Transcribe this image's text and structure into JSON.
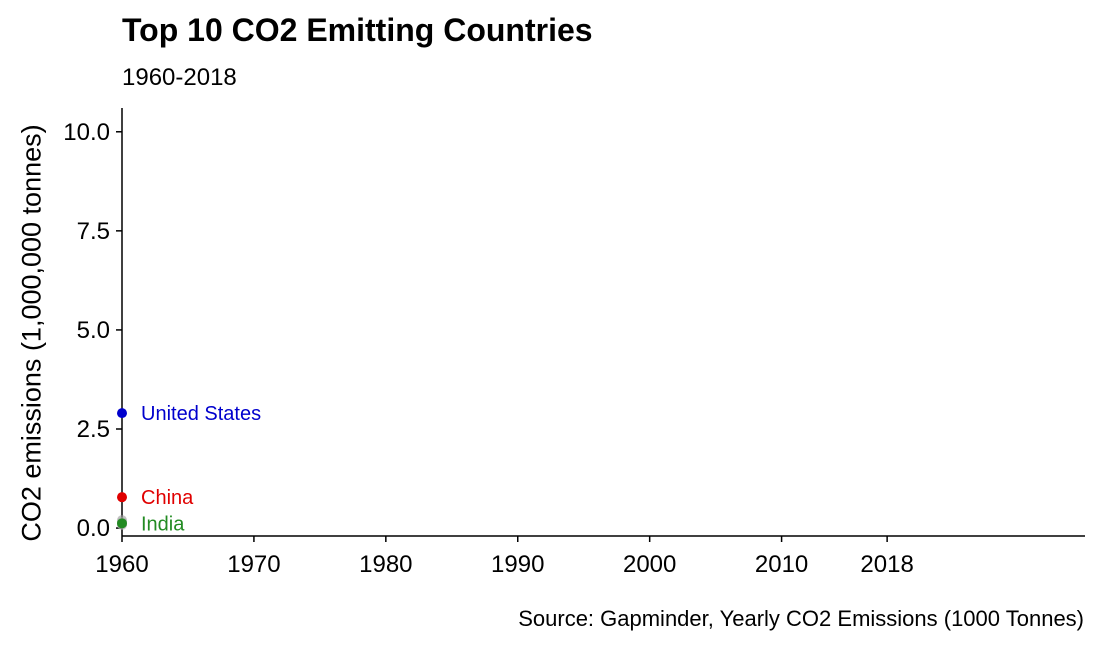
{
  "chart_data": {
    "type": "scatter",
    "title": "Top 10 CO2 Emitting Countries",
    "subtitle": "1960-2018",
    "ylabel": "CO2 emissions (1,000,000 tonnes)",
    "xlabel": "",
    "caption": "Source: Gapminder, Yearly CO2 Emissions (1000 Tonnes)",
    "xlim": [
      1960,
      2033
    ],
    "ylim": [
      -0.2,
      10.6
    ],
    "x_ticks": [
      1960,
      1970,
      1980,
      1990,
      2000,
      2010,
      2018
    ],
    "y_ticks": [
      0.0,
      2.5,
      5.0,
      7.5,
      10.0
    ],
    "y_tick_labels": [
      "0.0",
      "2.5",
      "5.0",
      "7.5",
      "10.0"
    ],
    "grid": false,
    "legend": "none",
    "series": [
      {
        "name": "United States",
        "x": 1960,
        "y": 2.9,
        "color": "#0000CD",
        "labeled": true
      },
      {
        "name": "China",
        "x": 1960,
        "y": 0.78,
        "color": "#E00000",
        "labeled": true
      },
      {
        "name": "India",
        "x": 1960,
        "y": 0.12,
        "color": "#228B22",
        "labeled": true
      },
      {
        "x": 1960,
        "y": 0.2,
        "color": "#9A9A9A",
        "labeled": false
      },
      {
        "x": 1960,
        "y": 0.15,
        "color": "#A8A8A8",
        "labeled": false
      },
      {
        "x": 1960,
        "y": 0.1,
        "color": "#9A9A9A",
        "labeled": false
      },
      {
        "x": 1960,
        "y": 0.08,
        "color": "#B0B0B0",
        "labeled": false
      }
    ]
  }
}
